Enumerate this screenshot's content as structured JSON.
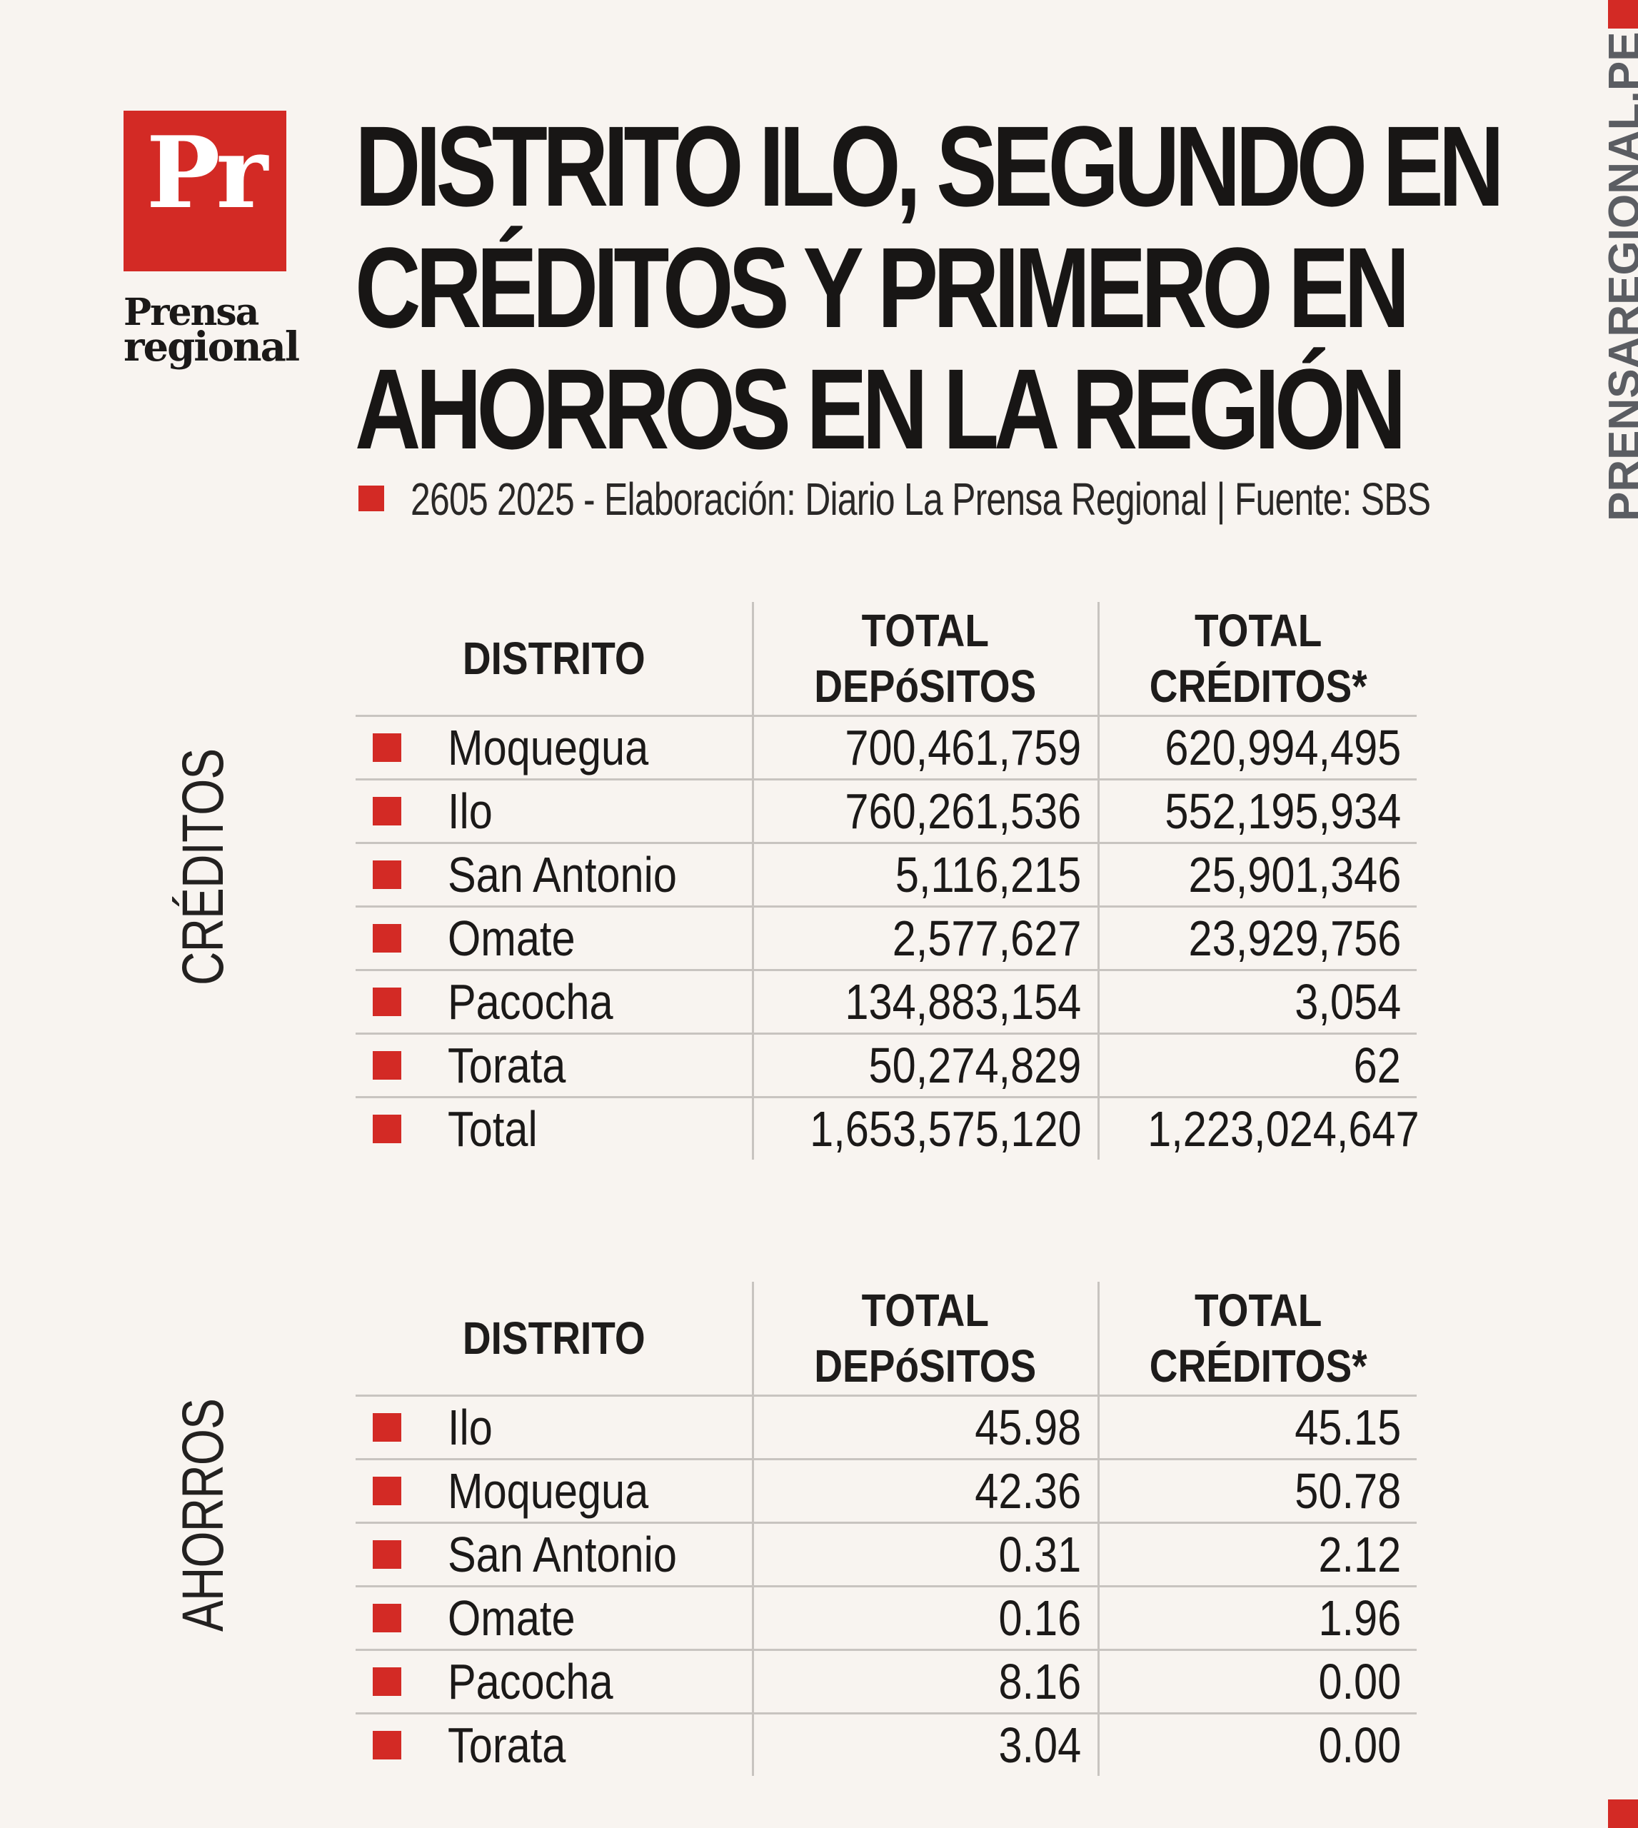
{
  "brand": {
    "logo_mark": "Pr",
    "logo_word_1": "Prensa",
    "logo_word_2": "regional",
    "side_url": "PRENSAREGIONAL.PE",
    "accent_color": "#d32a25"
  },
  "headline": {
    "line1": "DISTRITO ILO, SEGUNDO EN",
    "line2": "CRÉDITOS Y PRIMERO EN",
    "line3": "AHORROS EN LA REGIÓN"
  },
  "subtitle": "2605 2025 -  Elaboración: Diario La Prensa Regional | Fuente: SBS",
  "creditos": {
    "section_label": "CRÉDITOS",
    "headers": {
      "distrito": "DISTRITO",
      "dep_1": "TOTAL",
      "dep_2": "DEPóSITOS",
      "cred_1": "TOTAL",
      "cred_2": "CRÉDITOS*"
    },
    "rows": [
      {
        "distrito": "Moquegua",
        "depositos": "700,461,759",
        "creditos": "620,994,495"
      },
      {
        "distrito": "Ilo",
        "depositos": "760,261,536",
        "creditos": "552,195,934"
      },
      {
        "distrito": "San Antonio",
        "depositos": "5,116,215",
        "creditos": "25,901,346"
      },
      {
        "distrito": "Omate",
        "depositos": "2,577,627",
        "creditos": "23,929,756"
      },
      {
        "distrito": "Pacocha",
        "depositos": "134,883,154",
        "creditos": "3,054"
      },
      {
        "distrito": "Torata",
        "depositos": "50,274,829",
        "creditos": "62"
      },
      {
        "distrito": "Total",
        "depositos": "1,653,575,120",
        "creditos": "1,223,024,647"
      }
    ]
  },
  "ahorros": {
    "section_label": "AHORROS",
    "headers": {
      "distrito": "DISTRITO",
      "dep_1": "TOTAL",
      "dep_2": "DEPóSITOS",
      "cred_1": "TOTAL",
      "cred_2": "CRÉDITOS*"
    },
    "rows": [
      {
        "distrito": "Ilo",
        "depositos": "45.98",
        "creditos": "45.15"
      },
      {
        "distrito": "Moquegua",
        "depositos": "42.36",
        "creditos": "50.78"
      },
      {
        "distrito": "San Antonio",
        "depositos": "0.31",
        "creditos": "2.12"
      },
      {
        "distrito": "Omate",
        "depositos": "0.16",
        "creditos": "1.96"
      },
      {
        "distrito": "Pacocha",
        "depositos": "8.16",
        "creditos": "0.00"
      },
      {
        "distrito": "Torata",
        "depositos": "3.04",
        "creditos": "0.00"
      }
    ]
  }
}
